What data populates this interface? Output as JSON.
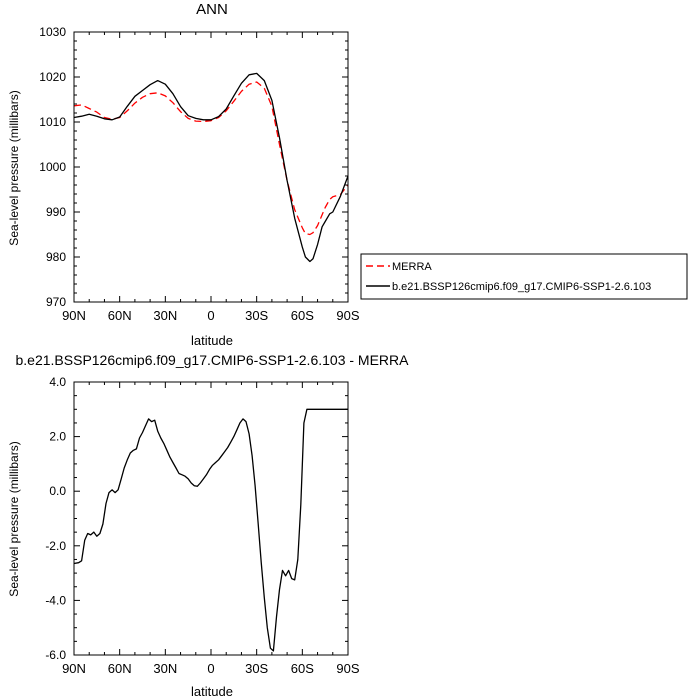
{
  "chart_data": [
    {
      "type": "line",
      "title": "ANN",
      "xlabel": "latitude",
      "ylabel": "Sea-level pressure (millibars)",
      "x_unit": "degrees latitude (positive = N, negative = S)",
      "xlim": [
        90,
        -90
      ],
      "ylim": [
        970,
        1030
      ],
      "x_ticks": [
        90,
        60,
        30,
        0,
        -30,
        -60,
        -90
      ],
      "x_tick_labels": [
        "90N",
        "60N",
        "30N",
        "0",
        "30S",
        "60S",
        "90S"
      ],
      "y_ticks": [
        970,
        980,
        990,
        1000,
        1010,
        1020,
        1030
      ],
      "y_tick_labels": [
        "970",
        "980",
        "990",
        "1000",
        "1010",
        "1020",
        "1030"
      ],
      "legend_position": "right",
      "series": [
        {
          "name": "MERRA",
          "color": "#ff0000",
          "dash": "dashed",
          "x": [
            90,
            85,
            80,
            75,
            70,
            65,
            60,
            55,
            50,
            45,
            40,
            35,
            30,
            25,
            20,
            15,
            10,
            5,
            0,
            -5,
            -10,
            -15,
            -20,
            -25,
            -30,
            -35,
            -40,
            -45,
            -50,
            -55,
            -60,
            -62,
            -65,
            -67,
            -70,
            -75,
            -78,
            -80,
            -85,
            -90
          ],
          "y": [
            1013.6,
            1013.8,
            1013.0,
            1012.2,
            1011.0,
            1010.6,
            1011.0,
            1012.5,
            1014.2,
            1015.5,
            1016.3,
            1016.5,
            1015.8,
            1014.3,
            1012.3,
            1010.8,
            1010.2,
            1010.1,
            1010.3,
            1011.0,
            1012.5,
            1014.6,
            1016.8,
            1018.4,
            1018.9,
            1017.5,
            1013.5,
            1005.0,
            997.0,
            990.5,
            986.5,
            985.2,
            985.0,
            985.4,
            987.0,
            991.0,
            992.8,
            993.4,
            993.9,
            996.0
          ]
        },
        {
          "name": "b.e21.BSSP126cmip6.f09_g17.CMIP6-SSP1-2.6.103",
          "color": "#000000",
          "dash": "solid",
          "x": [
            90,
            85,
            80,
            75,
            70,
            65,
            60,
            55,
            50,
            45,
            40,
            35,
            30,
            25,
            20,
            15,
            10,
            5,
            0,
            -5,
            -10,
            -15,
            -20,
            -25,
            -30,
            -35,
            -40,
            -45,
            -50,
            -55,
            -60,
            -62,
            -65,
            -67,
            -70,
            -73,
            -75,
            -78,
            -80,
            -85,
            -90
          ],
          "y": [
            1011.0,
            1011.3,
            1011.7,
            1011.3,
            1010.7,
            1010.5,
            1011.1,
            1013.5,
            1015.7,
            1017.0,
            1018.3,
            1019.2,
            1018.4,
            1016.3,
            1013.4,
            1011.4,
            1010.8,
            1010.5,
            1010.5,
            1011.2,
            1012.9,
            1015.8,
            1018.6,
            1020.5,
            1020.8,
            1019.2,
            1014.8,
            1006.5,
            997.0,
            988.6,
            982.2,
            980.0,
            979.0,
            979.6,
            982.8,
            986.7,
            987.9,
            989.6,
            990.0,
            993.5,
            998.0
          ]
        }
      ]
    },
    {
      "type": "line",
      "title": "b.e21.BSSP126cmip6.f09_g17.CMIP6-SSP1-2.6.103 - MERRA",
      "xlabel": "latitude",
      "ylabel": "Sea-level pressure (millibars)",
      "x_unit": "degrees latitude (positive = N, negative = S)",
      "xlim": [
        90,
        -90
      ],
      "ylim": [
        -6,
        4
      ],
      "x_ticks": [
        90,
        60,
        30,
        0,
        -30,
        -60,
        -90
      ],
      "x_tick_labels": [
        "90N",
        "60N",
        "30N",
        "0",
        "30S",
        "60S",
        "90S"
      ],
      "y_ticks": [
        -6,
        -4,
        -2,
        0,
        2,
        4
      ],
      "y_tick_labels": [
        "-6.0",
        "-4.0",
        "-2.0",
        "0.0",
        "2.0",
        "4.0"
      ],
      "series": [
        {
          "color": "#000000",
          "dash": "solid",
          "x": [
            90,
            87,
            85,
            83,
            81,
            79,
            77,
            75,
            73,
            71,
            69,
            67,
            65,
            63,
            61,
            59,
            57,
            55,
            53,
            51,
            49,
            47,
            45,
            43,
            41,
            39,
            37,
            35,
            33,
            31,
            29,
            27,
            25,
            23,
            21,
            19,
            17,
            15,
            13,
            11,
            9,
            7,
            5,
            3,
            1,
            -1,
            -3,
            -5,
            -7,
            -9,
            -11,
            -13,
            -15,
            -17,
            -19,
            -21,
            -23,
            -25,
            -27,
            -29,
            -31,
            -33,
            -35,
            -37,
            -39,
            -41,
            -43,
            -45,
            -47,
            -49,
            -51,
            -53,
            -55,
            -57,
            -59,
            -61,
            -63,
            -65,
            -67,
            -69,
            -71,
            -73,
            -75,
            -77,
            -79,
            -81,
            -83,
            -85,
            -87,
            -89,
            -90
          ],
          "y": [
            -2.65,
            -2.62,
            -2.55,
            -1.8,
            -1.55,
            -1.6,
            -1.5,
            -1.65,
            -1.55,
            -1.2,
            -0.45,
            -0.05,
            0.05,
            -0.05,
            0.05,
            0.45,
            0.85,
            1.15,
            1.4,
            1.5,
            1.55,
            1.95,
            2.15,
            2.4,
            2.65,
            2.55,
            2.6,
            2.2,
            1.95,
            1.75,
            1.5,
            1.25,
            1.05,
            0.85,
            0.65,
            0.6,
            0.55,
            0.45,
            0.3,
            0.2,
            0.18,
            0.3,
            0.45,
            0.6,
            0.8,
            0.95,
            1.05,
            1.15,
            1.3,
            1.45,
            1.6,
            1.8,
            2.0,
            2.25,
            2.5,
            2.65,
            2.55,
            2.1,
            1.3,
            0.2,
            -1.2,
            -2.6,
            -3.9,
            -5.0,
            -5.75,
            -5.85,
            -4.6,
            -3.6,
            -2.9,
            -3.1,
            -2.9,
            -3.2,
            -3.25,
            -2.5,
            -0.5,
            2.5,
            3.0,
            3.0,
            3.0,
            3.0,
            3.0,
            3.0,
            3.0,
            3.0,
            3.0,
            3.0,
            3.0,
            3.0,
            3.0,
            3.0,
            3.0
          ]
        }
      ]
    }
  ]
}
